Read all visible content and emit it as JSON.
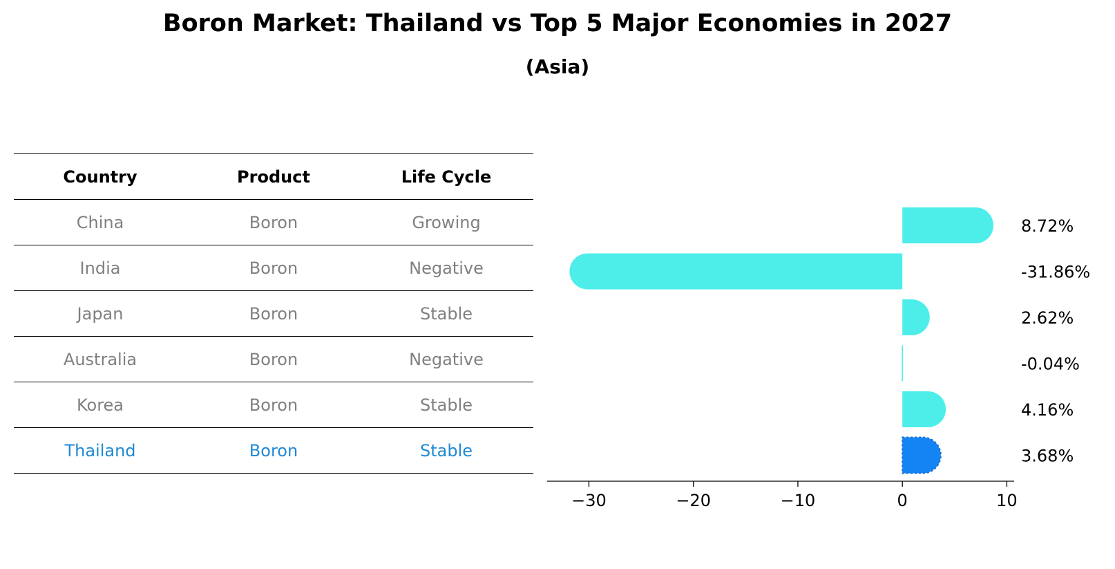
{
  "title": "Boron Market: Thailand vs Top 5 Major Economies in 2027",
  "subtitle": "(Asia)",
  "table": {
    "headers": [
      "Country",
      "Product",
      "Life Cycle"
    ],
    "rows": [
      [
        "China",
        "Boron",
        "Growing"
      ],
      [
        "India",
        "Boron",
        "Negative"
      ],
      [
        "Japan",
        "Boron",
        "Stable"
      ],
      [
        "Australia",
        "Boron",
        "Negative"
      ],
      [
        "Korea",
        "Boron",
        "Stable"
      ],
      [
        "Thailand",
        "Boron",
        "Stable"
      ]
    ],
    "highlight_row": "Thailand",
    "highlight_color": "#1f8ad6",
    "text_color": "#808080"
  },
  "chart_data": {
    "type": "bar",
    "orientation": "horizontal",
    "categories": [
      "China",
      "India",
      "Japan",
      "Australia",
      "Korea",
      "Thailand"
    ],
    "values": [
      8.72,
      -31.86,
      2.62,
      -0.04,
      4.16,
      3.68
    ],
    "value_labels": [
      "8.72%",
      "-31.86%",
      "2.62%",
      "-0.04%",
      "4.16%",
      "3.68%"
    ],
    "xlim": [
      -34,
      10.7
    ],
    "xticks": [
      -30,
      -20,
      -10,
      0,
      10
    ],
    "xtick_labels": [
      "−30",
      "−20",
      "−10",
      "0",
      "10"
    ],
    "bar_color": "#4deeea",
    "highlight_color": "#1484f4",
    "highlight_category": "Thailand",
    "grid": false
  }
}
